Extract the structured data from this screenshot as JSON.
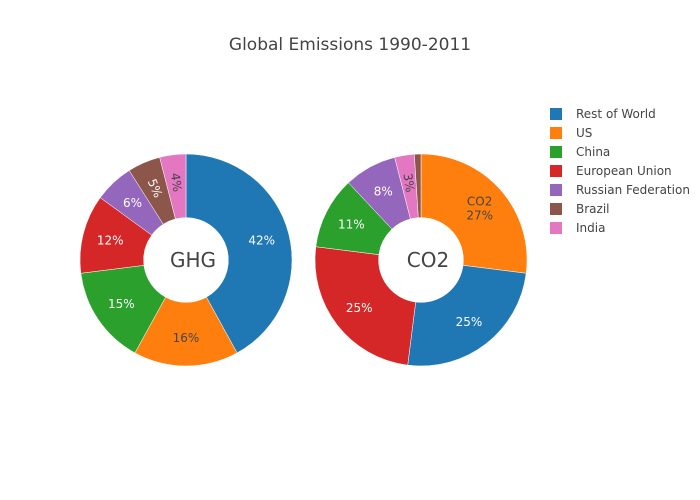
{
  "chart_data": {
    "type": "pie",
    "title": "Global Emissions 1990-2011",
    "legend_position": "top-right",
    "labels": [
      "Rest of World",
      "US",
      "China",
      "European Union",
      "Russian Federation",
      "Brazil",
      "India"
    ],
    "colors": {
      "Rest of World": "#1f77b4",
      "US": "#ff7f0e",
      "China": "#2ca02c",
      "European Union": "#d62728",
      "Russian Federation": "#9467bd",
      "Brazil": "#8c564b",
      "India": "#e377c2"
    },
    "series": [
      {
        "name": "GHG",
        "hole_label": "GHG",
        "values": {
          "Rest of World": 42,
          "US": 16,
          "China": 15,
          "European Union": 12,
          "Russian Federation": 6,
          "Brazil": 5,
          "India": 4
        },
        "text": {
          "Rest of World": "42%",
          "US": "16%",
          "China": "15%",
          "European Union": "12%",
          "Russian Federation": "6%",
          "Brazil": "5%",
          "India": "4%"
        }
      },
      {
        "name": "CO2",
        "hole_label": "CO2",
        "values": {
          "US": 27,
          "Rest of World": 25,
          "European Union": 25,
          "China": 11,
          "Russian Federation": 8,
          "India": 3,
          "Brazil": 1
        },
        "text": {
          "US": "CO2\n27%",
          "Rest of World": "25%",
          "European Union": "25%",
          "China": "11%",
          "Russian Federation": "8%",
          "India": "3%",
          "Brazil": ""
        }
      }
    ]
  }
}
